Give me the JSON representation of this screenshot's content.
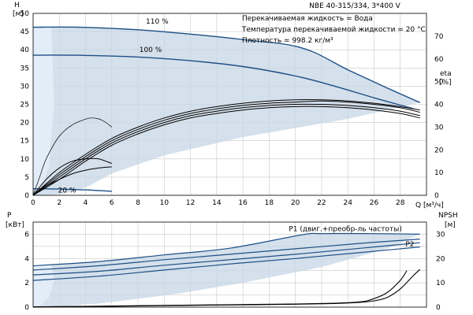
{
  "chart_data": [
    {
      "id": "top",
      "type": "line",
      "title": "NBE 40-315/334, 3*400 V",
      "info_lines": [
        "Перекачиваемая жидкость = Вода",
        "Температура перекачиваемой жидкости = 20 °C",
        "Плотность = 998.2 кг/м³"
      ],
      "xlabel": "Q [м³/ч]",
      "ylabel_left": [
        "H",
        "[м]"
      ],
      "ylabel_right": [
        "eta",
        "[%]"
      ],
      "xlim": [
        0,
        30
      ],
      "ylim_left": [
        0,
        50
      ],
      "ylim_right": [
        0,
        80
      ],
      "x_ticks": [
        "0",
        "2",
        "4",
        "6",
        "8",
        "10",
        "12",
        "14",
        "16",
        "18",
        "20",
        "22",
        "24",
        "26",
        "28"
      ],
      "y_ticks_left": [
        "0",
        "5",
        "10",
        "15",
        "20",
        "25",
        "30",
        "35",
        "40",
        "45",
        "50"
      ],
      "y_ticks_right": [
        "0",
        "10",
        "20",
        "30",
        "40",
        "50",
        "60",
        "70"
      ],
      "grid": true,
      "colors": {
        "curve": "#1d4f86",
        "eta": "#000000",
        "area": "#c5d5e4",
        "area_light": "#e3edf8"
      },
      "series": [
        {
          "name": "110 %",
          "axis": "left",
          "x": [
            0,
            3.5,
            8,
            12,
            16,
            20.5,
            24,
            27,
            29.5
          ],
          "y": [
            46.2,
            46.2,
            45.5,
            44.3,
            42.8,
            40.5,
            34.5,
            29.5,
            25.5
          ]
        },
        {
          "name": "100 %",
          "axis": "left",
          "x": [
            0,
            3,
            8,
            12,
            16,
            20,
            23,
            26,
            29
          ],
          "y": [
            38.5,
            38.5,
            38,
            37,
            35.4,
            32.8,
            30,
            26.8,
            23.8
          ]
        },
        {
          "name": "20 %",
          "axis": "left",
          "x": [
            0,
            1,
            2,
            3,
            4,
            5,
            6
          ],
          "y": [
            1.8,
            1.8,
            1.7,
            1.6,
            1.5,
            1.3,
            1.1
          ]
        }
      ],
      "eta_curves": [
        {
          "axis": "right",
          "x": [
            0,
            2,
            4,
            6,
            8,
            10,
            12,
            14,
            16,
            18,
            20,
            22,
            24,
            26,
            28,
            29.5
          ],
          "y": [
            0,
            10,
            18,
            25,
            30,
            34,
            37,
            39,
            40.5,
            41.5,
            42,
            42,
            41.5,
            40.5,
            39,
            37.5
          ]
        },
        {
          "axis": "right",
          "x": [
            0,
            2,
            4,
            6,
            8,
            10,
            12,
            14,
            16,
            18,
            20,
            22,
            24,
            26,
            28,
            29.5
          ],
          "y": [
            0,
            9,
            17,
            24,
            29,
            33,
            36,
            38,
            39.5,
            40.5,
            41,
            41.5,
            41,
            40,
            38.5,
            36.5
          ]
        },
        {
          "axis": "right",
          "x": [
            0,
            2,
            4,
            6,
            8,
            10,
            12,
            14,
            16,
            18,
            20,
            22,
            24,
            26,
            28,
            29.5
          ],
          "y": [
            0,
            8,
            16,
            23,
            28,
            32,
            35,
            37,
            38.5,
            39.5,
            40,
            40,
            39.5,
            38.5,
            37,
            35
          ]
        },
        {
          "axis": "right",
          "x": [
            0,
            2,
            4,
            6,
            8,
            10,
            12,
            14,
            16,
            18,
            20,
            22,
            24,
            26,
            28,
            29.5
          ],
          "y": [
            0,
            7,
            15,
            22,
            27,
            31,
            34,
            36,
            37.5,
            38.5,
            39,
            39,
            38.5,
            37.5,
            36,
            34
          ]
        },
        {
          "axis": "right",
          "x": [
            0,
            1,
            2,
            3,
            4,
            5,
            6
          ],
          "y": [
            0,
            7,
            12,
            15,
            16,
            16,
            14
          ]
        },
        {
          "axis": "right",
          "x": [
            0,
            1,
            2,
            3,
            4,
            5,
            6
          ],
          "y": [
            0,
            4,
            7,
            9.5,
            11,
            12,
            12.5
          ]
        }
      ],
      "eta_peak_curve": {
        "axis": "right",
        "x": [
          0,
          0.5,
          1,
          2,
          3,
          4,
          4.5,
          5,
          5.5,
          6
        ],
        "y": [
          0,
          8,
          16,
          26,
          31,
          33.5,
          34,
          33.6,
          32.2,
          30
        ]
      },
      "operating_area": {
        "x": [
          0,
          3.5,
          8,
          12,
          16,
          20.5,
          24,
          27,
          29.5,
          24,
          16,
          10,
          6,
          4.5,
          3.5,
          3,
          2.5,
          2,
          1.2,
          0.6,
          0
        ],
        "y": [
          46.2,
          46.2,
          45.5,
          44.3,
          42.8,
          40.5,
          34.5,
          29.5,
          25.5,
          21,
          16,
          11,
          6,
          3,
          1.5,
          1,
          0.6,
          0.3,
          0.1,
          0,
          0
        ]
      },
      "light_area": {
        "x": [
          0,
          1.4,
          1.6,
          1.2,
          0.6,
          0
        ],
        "y": [
          46.2,
          46.2,
          25,
          8,
          2,
          0
        ]
      }
    },
    {
      "id": "bottom",
      "type": "line",
      "ylabel_left": [
        "P",
        "[кВт]"
      ],
      "ylabel_right": [
        "NPSH",
        "[м]"
      ],
      "xlim": [
        0,
        30
      ],
      "ylim_left": [
        0,
        7
      ],
      "ylim_right": [
        0,
        35
      ],
      "y_ticks_left": [
        "0",
        "2",
        "4",
        "6"
      ],
      "y_ticks_right": [
        "0",
        "10",
        "20",
        "30"
      ],
      "grid": true,
      "colors": {
        "curve": "#1d4f86",
        "npsh": "#000000",
        "area": "#c5d5e4",
        "area_light": "#e3edf8"
      },
      "series": [
        {
          "name": "P1 (двиг.+преобр-ль частоты)",
          "axis": "left",
          "x": [
            0,
            5,
            10,
            15,
            20.5,
            22,
            26,
            29.5
          ],
          "y": [
            3.4,
            3.75,
            4.3,
            4.85,
            5.95,
            6.05,
            6.05,
            6.0
          ]
        },
        {
          "name": "P1 (двиг.+преобр-ль частоты)",
          "axis": "left",
          "x": [
            0,
            5,
            10,
            15,
            20,
            25,
            29.5
          ],
          "y": [
            3.05,
            3.4,
            3.9,
            4.35,
            4.8,
            5.25,
            5.6
          ]
        },
        {
          "name": "P2",
          "axis": "left",
          "x": [
            0,
            5,
            10,
            15,
            20,
            25,
            29.5
          ],
          "y": [
            2.65,
            2.95,
            3.45,
            3.9,
            4.35,
            4.85,
            5.3
          ]
        },
        {
          "name": "P2",
          "axis": "left",
          "x": [
            0,
            5,
            10,
            15,
            20,
            25,
            29.5
          ],
          "y": [
            2.2,
            2.55,
            3.05,
            3.55,
            4.0,
            4.5,
            4.95
          ]
        }
      ],
      "npsh_curves": [
        {
          "axis": "right",
          "x": [
            0,
            5,
            10,
            15,
            20,
            23,
            25,
            26,
            27,
            28,
            28.5
          ],
          "y": [
            0.1,
            0.4,
            0.7,
            1,
            1.3,
            1.6,
            2.2,
            3.5,
            6,
            11,
            15
          ]
        },
        {
          "axis": "right",
          "x": [
            0,
            5,
            10,
            15,
            20,
            23,
            25,
            26,
            27,
            28,
            29,
            29.5
          ],
          "y": [
            0.1,
            0.3,
            0.6,
            0.9,
            1.2,
            1.5,
            2,
            2.6,
            4,
            7.5,
            13,
            15.5
          ]
        }
      ],
      "operating_area": {
        "x": [
          0,
          5,
          10,
          15,
          20.5,
          22,
          26,
          29.5,
          27,
          22,
          16,
          11,
          7,
          5,
          3,
          1.8,
          0
        ],
        "y": [
          3.4,
          3.75,
          4.3,
          4.85,
          5.95,
          6.05,
          6.05,
          6.0,
          4.8,
          3.3,
          2.0,
          1.1,
          0.55,
          0.3,
          0.15,
          0.05,
          0
        ]
      },
      "light_area": {
        "x": [
          0,
          1.4,
          1.6,
          1.2,
          0.6,
          0
        ],
        "y": [
          3.4,
          3.5,
          2.2,
          0.8,
          0.2,
          0
        ]
      },
      "labels": [
        {
          "text": "P1 (двиг.+преобр-ль частоты)",
          "x": 19.5,
          "y": 6.25
        },
        {
          "text": "P2",
          "x": 28.4,
          "y": 5.0
        }
      ]
    }
  ],
  "labels_top": [
    {
      "text": "110 %",
      "x": 8.6,
      "y": 47.2
    },
    {
      "text": "100 %",
      "x": 8.1,
      "y": 39.4
    },
    {
      "text": "20 %",
      "x": 1.9,
      "y": 0.8
    }
  ]
}
